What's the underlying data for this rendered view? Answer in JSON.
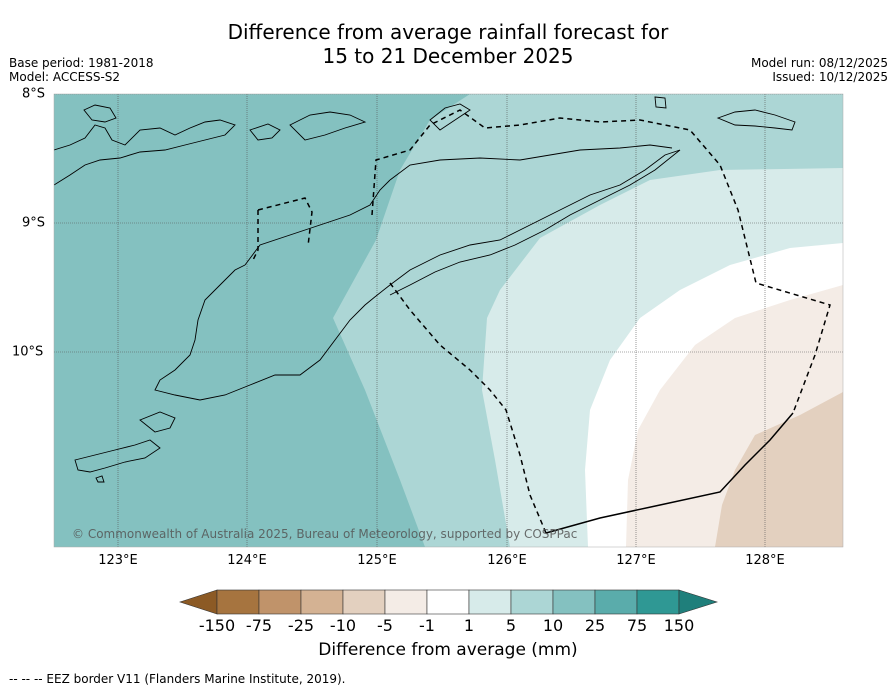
{
  "title": {
    "line1": "Difference from average rainfall forecast for",
    "line2": "15 to 21 December 2025"
  },
  "meta": {
    "base_period": "Base period: 1981-2018",
    "model": "Model: ACCESS-S2",
    "model_run": "Model run: 08/12/2025",
    "issued": "Issued: 10/12/2025"
  },
  "axes": {
    "x_ticks": [
      "123°E",
      "124°E",
      "125°E",
      "126°E",
      "127°E",
      "128°E"
    ],
    "y_ticks": [
      "8°S",
      "9°S",
      "10°S"
    ]
  },
  "colorbar": {
    "labels": [
      "-150",
      "-75",
      "-25",
      "-10",
      "-5",
      "-1",
      "1",
      "5",
      "10",
      "25",
      "75",
      "150"
    ],
    "colors": [
      "#a6743f",
      "#c0936a",
      "#d4b293",
      "#e3d0bf",
      "#f4ece6",
      "#ffffff",
      "#d7ebea",
      "#acd6d5",
      "#84c1c0",
      "#5aacab",
      "#2f9894"
    ],
    "title": "Difference from average (mm)"
  },
  "map_colors": {
    "band_25": "#84c1c0",
    "band_10": "#acd6d5",
    "band_5": "#d7ebea",
    "band_neutral": "#ffffff",
    "band_neg5": "#f4ece6",
    "band_neg10": "#e3d0bf"
  },
  "copyright": "© Commonwealth of Australia 2025, Bureau of Meteorology, supported by COSPPac",
  "footnote": "--  --  -- EEZ border V11 (Flanders Marine Institute, 2019)."
}
